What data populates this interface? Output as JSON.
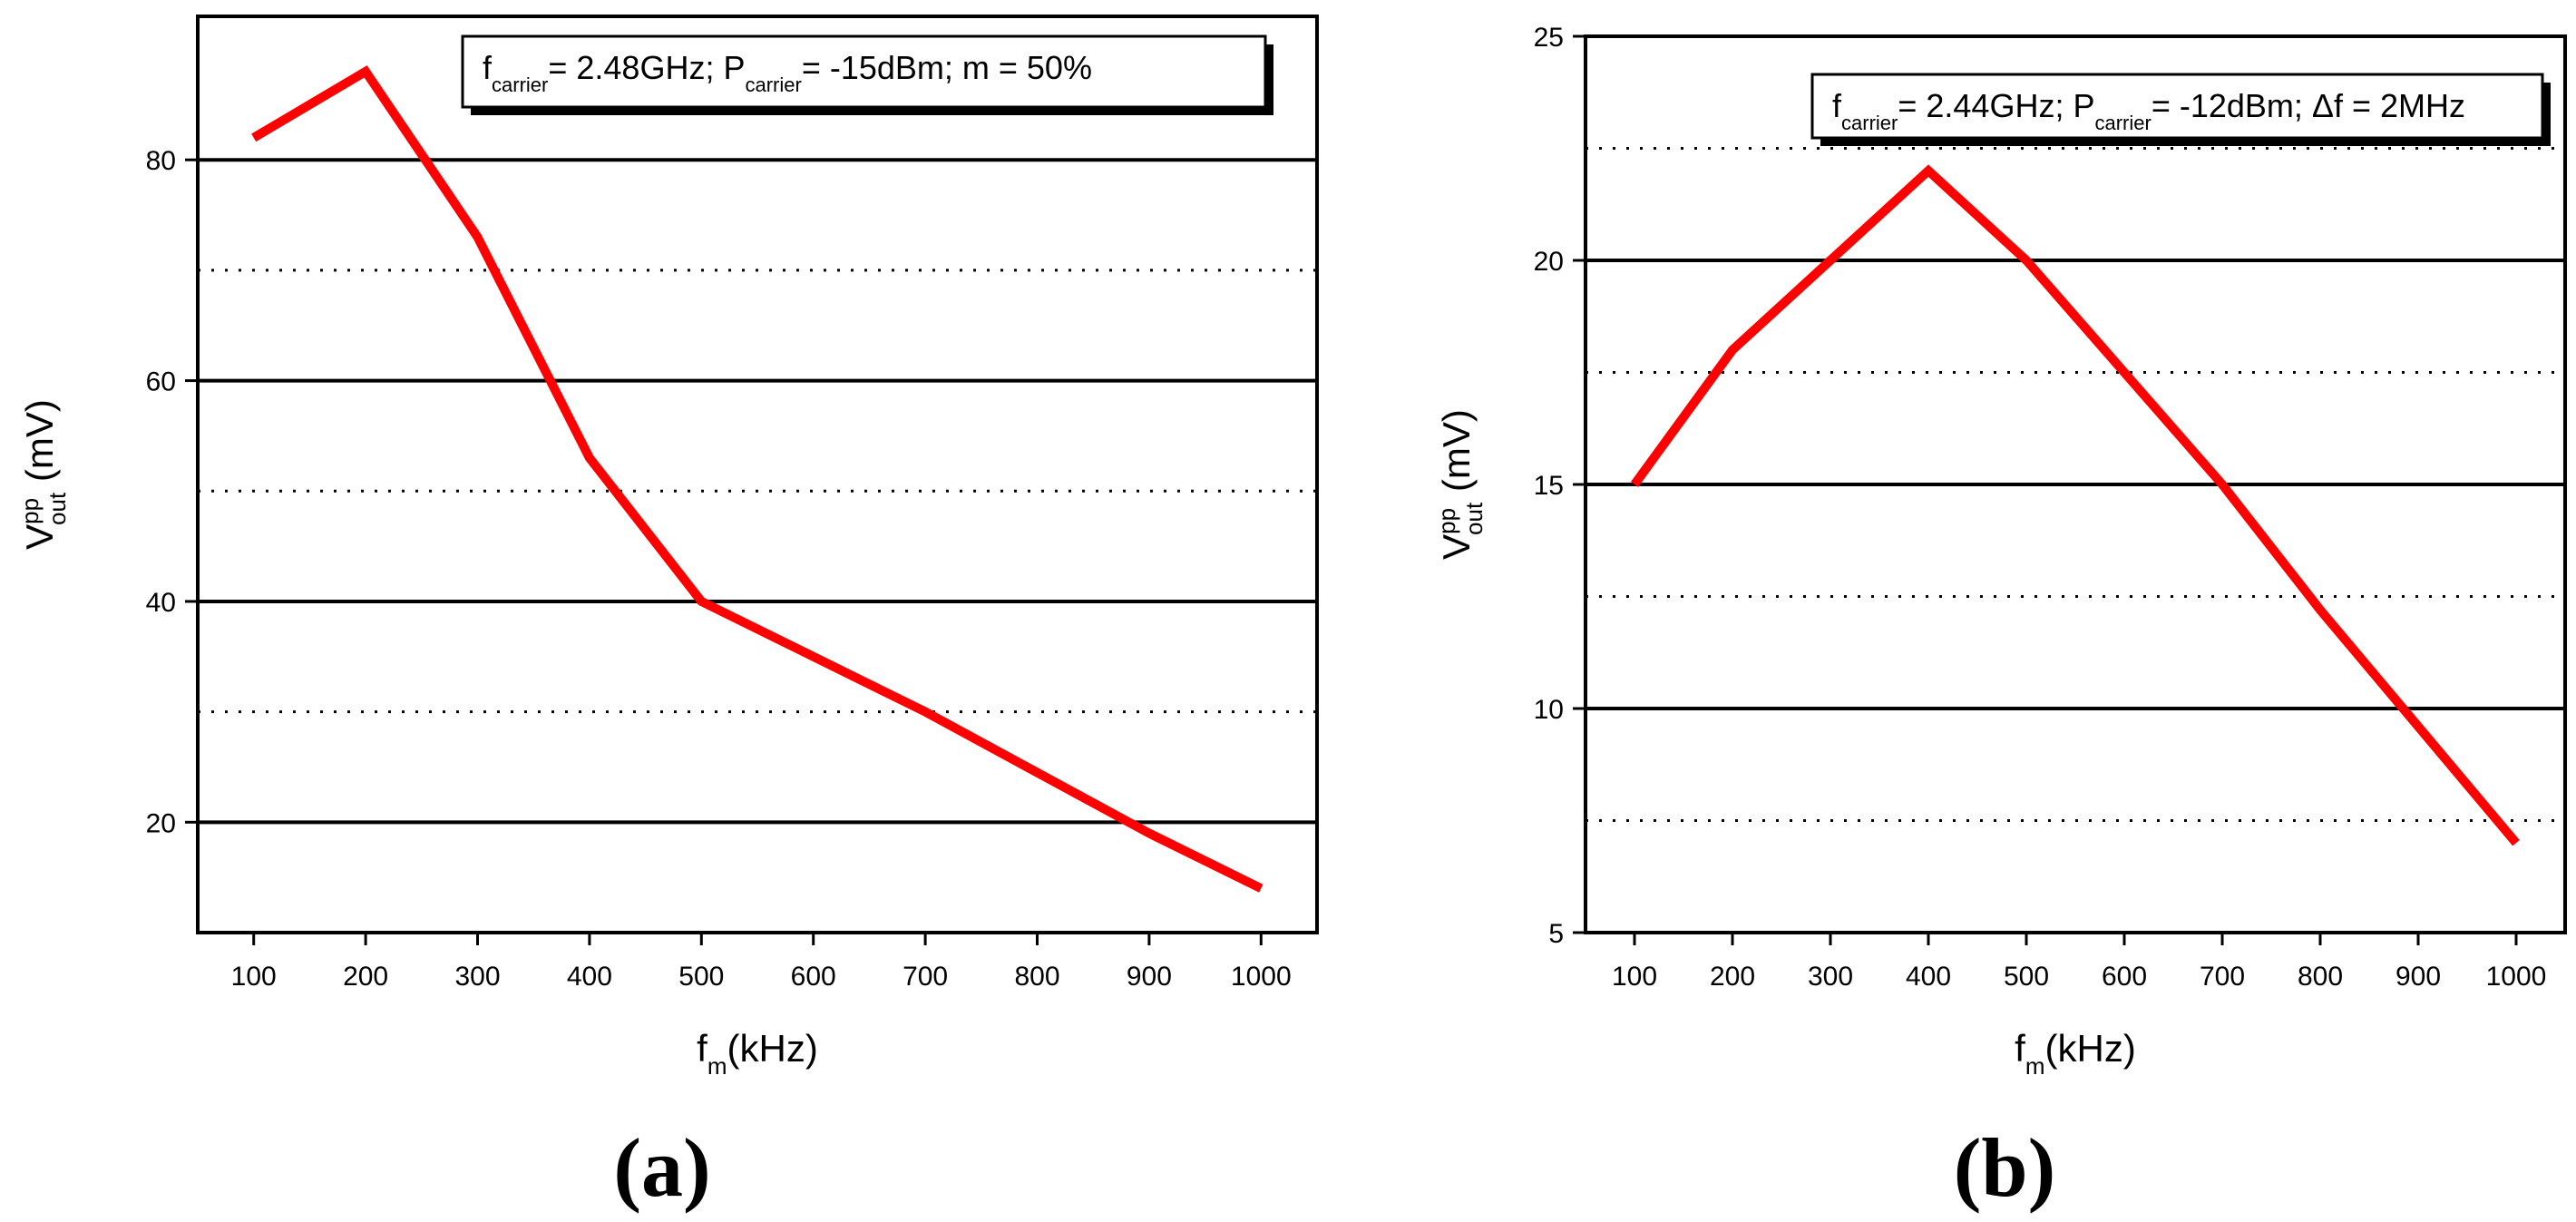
{
  "colors": {
    "series": "#ff0000",
    "grid": "#000000",
    "background": "#ffffff"
  },
  "chart_data": [
    {
      "type": "line",
      "panel_label": "(a)",
      "x": [
        100,
        200,
        300,
        400,
        500,
        600,
        700,
        800,
        900,
        1000
      ],
      "series": [
        {
          "name": "Vout pp",
          "values": [
            82,
            88,
            73,
            53,
            40,
            35,
            30,
            24.5,
            19,
            14
          ]
        }
      ],
      "xlim": [
        50,
        1050
      ],
      "ylim": [
        10,
        93
      ],
      "xticks": [
        100,
        200,
        300,
        400,
        500,
        600,
        700,
        800,
        900,
        1000
      ],
      "yticks": [
        20,
        40,
        60,
        80
      ],
      "ytick_labels": [
        "20",
        "40",
        "60",
        "80"
      ],
      "major_gridlines": [
        20,
        40,
        60,
        80
      ],
      "minor_gridlines": [
        30,
        50,
        70
      ],
      "xlabel": {
        "main": "f",
        "sub": "m",
        "suffix": "(kHz)"
      },
      "ylabel": {
        "main": "V",
        "sup": "pp",
        "sub": "out",
        "suffix": " (mV)"
      },
      "legend": {
        "position": "top-right",
        "parts": [
          {
            "text": "f",
            "sub": "carrier"
          },
          {
            "text": "= 2.48GHz; P",
            "sub": "carrier"
          },
          {
            "text": "= -15dBm; m = 50%"
          }
        ]
      }
    },
    {
      "type": "line",
      "panel_label": "(b)",
      "x": [
        100,
        200,
        300,
        400,
        500,
        600,
        700,
        800,
        900,
        1000
      ],
      "series": [
        {
          "name": "Vout pp",
          "values": [
            15,
            18,
            20,
            22,
            20,
            17.5,
            15,
            12.2,
            9.6,
            7
          ]
        }
      ],
      "xlim": [
        50,
        1050
      ],
      "ylim": [
        5,
        25
      ],
      "xticks": [
        100,
        200,
        300,
        400,
        500,
        600,
        700,
        800,
        900,
        1000
      ],
      "yticks": [
        5,
        10,
        15,
        20,
        25
      ],
      "ytick_labels": [
        "5",
        "10",
        "15",
        "20",
        "25"
      ],
      "major_gridlines": [
        10,
        15,
        20
      ],
      "minor_gridlines": [
        7.5,
        12.5,
        17.5,
        22.5
      ],
      "xlabel": {
        "main": "f",
        "sub": "m",
        "suffix": "(kHz)"
      },
      "ylabel": {
        "main": "V",
        "sup": "pp",
        "sub": "out",
        "suffix": " (mV)"
      },
      "legend": {
        "position": "top-right",
        "parts": [
          {
            "text": "f",
            "sub": "carrier"
          },
          {
            "text": "= 2.44GHz; P",
            "sub": "carrier"
          },
          {
            "text": "= -12dBm; Δf = 2MHz"
          }
        ]
      }
    }
  ]
}
